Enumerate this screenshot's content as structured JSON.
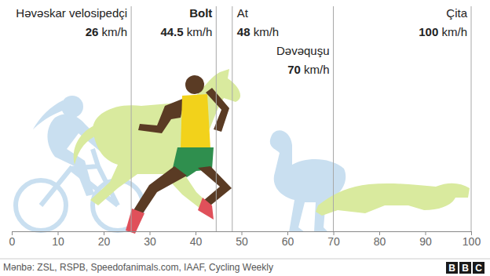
{
  "chart_data": {
    "type": "rule",
    "categories": [
      "Həvəskar velosipedçi",
      "Bolt",
      "At",
      "Dəvəquşu",
      "Çita"
    ],
    "values": [
      26,
      44.5,
      48,
      70,
      100
    ],
    "value_labels": [
      "26 km/h",
      "44.5 km/h",
      "48 km/h",
      "70 km/h",
      "100 km/h"
    ],
    "data_labels": true,
    "xlim": [
      0,
      100
    ],
    "xticks": [
      0,
      10,
      20,
      30,
      40,
      50,
      60,
      70,
      80,
      90,
      100
    ],
    "source": "Mənbə: ZSL, RSPB, Speedofanimals.com, IAAF, Cycling Weekly",
    "logo": "BBC"
  }
}
